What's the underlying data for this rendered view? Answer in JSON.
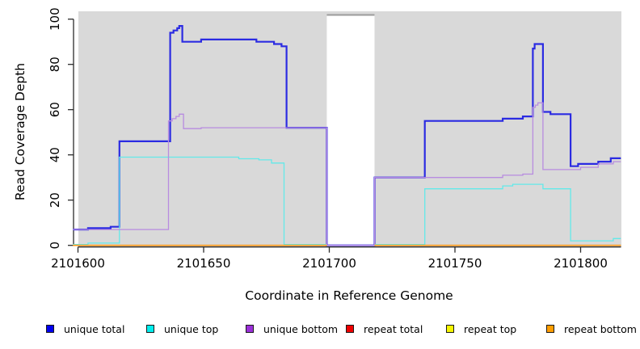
{
  "axes": {
    "ylabel": "Read Coverage Depth",
    "xlabel": "Coordinate in Reference Genome",
    "y_ticks": [
      0,
      20,
      40,
      60,
      80,
      100
    ],
    "x_ticks": [
      2101600,
      2101650,
      2101700,
      2101750,
      2101800
    ],
    "y_range": [
      0,
      100
    ],
    "x_range": [
      2101598,
      2101816
    ]
  },
  "legend": {
    "items": [
      {
        "label": "unique total",
        "color": "#0000ee"
      },
      {
        "label": "unique top",
        "color": "#00eeee"
      },
      {
        "label": "unique bottom",
        "color": "#9b30d9"
      },
      {
        "label": "repeat total",
        "color": "#ee0000"
      },
      {
        "label": "repeat top",
        "color": "#f5f500"
      },
      {
        "label": "repeat bottom",
        "color": "#ff9d00"
      }
    ]
  },
  "chart_data": {
    "type": "line",
    "interpolation": "step",
    "title": "",
    "xlabel": "Coordinate in Reference Genome",
    "ylabel": "Read Coverage Depth",
    "xlim": [
      2101598,
      2101816
    ],
    "ylim": [
      0,
      100
    ],
    "grid": false,
    "legend_position": "bottom",
    "plot_background": "#d9d9d9",
    "masked_region": {
      "from": 2101699,
      "to": 2101718,
      "color": "#ffffff",
      "edge_color": "#9b9b9b"
    },
    "series": [
      {
        "name": "unique total",
        "color": "#2b2be2",
        "width": 2.2,
        "segments": [
          [
            [
              2101598,
              7
            ],
            [
              2101604,
              7
            ],
            [
              2101604,
              7.6
            ],
            [
              2101613,
              7.6
            ],
            [
              2101613,
              8.2
            ],
            [
              2101616.5,
              8.2
            ],
            [
              2101616.5,
              46
            ],
            [
              2101636.7,
              46
            ],
            [
              2101636.7,
              94
            ],
            [
              2101638,
              94
            ],
            [
              2101638,
              95
            ],
            [
              2101639.5,
              95
            ],
            [
              2101639.5,
              96
            ],
            [
              2101640.3,
              96
            ],
            [
              2101640.3,
              97
            ],
            [
              2101641.5,
              97
            ],
            [
              2101641.5,
              90
            ],
            [
              2101649,
              90
            ],
            [
              2101649,
              91
            ],
            [
              2101671,
              91
            ],
            [
              2101671,
              90
            ],
            [
              2101678,
              90
            ],
            [
              2101678,
              89
            ],
            [
              2101681,
              89
            ],
            [
              2101681,
              88
            ],
            [
              2101683,
              88
            ],
            [
              2101683,
              52
            ],
            [
              2101699,
              52
            ],
            [
              2101699,
              0
            ],
            [
              2101718,
              0
            ],
            [
              2101718,
              30
            ],
            [
              2101738,
              30
            ],
            [
              2101738,
              55
            ],
            [
              2101769,
              55
            ],
            [
              2101769,
              56
            ],
            [
              2101777,
              56
            ],
            [
              2101777,
              57
            ],
            [
              2101781,
              57
            ],
            [
              2101781,
              87
            ],
            [
              2101781.7,
              87
            ],
            [
              2101781.7,
              89
            ],
            [
              2101785,
              89
            ],
            [
              2101785,
              59
            ],
            [
              2101788,
              59
            ],
            [
              2101788,
              58
            ],
            [
              2101796,
              58
            ],
            [
              2101796,
              35
            ],
            [
              2101799,
              35
            ],
            [
              2101799,
              36
            ],
            [
              2101807,
              36
            ],
            [
              2101807,
              37
            ],
            [
              2101812,
              37
            ],
            [
              2101812,
              38.5
            ],
            [
              2101816,
              38.5
            ]
          ]
        ]
      },
      {
        "name": "unique top",
        "color": "#63e9e9",
        "width": 1.3,
        "segments": [
          [
            [
              2101598,
              0.4
            ],
            [
              2101604,
              0.4
            ],
            [
              2101604,
              1
            ],
            [
              2101616.5,
              1
            ],
            [
              2101616.5,
              39
            ],
            [
              2101664,
              39
            ],
            [
              2101664,
              38.3
            ],
            [
              2101672,
              38.3
            ],
            [
              2101672,
              37.8
            ],
            [
              2101677,
              37.8
            ],
            [
              2101677,
              36.4
            ],
            [
              2101682,
              36.4
            ],
            [
              2101682,
              0.4
            ],
            [
              2101699,
              0.4
            ]
          ],
          [
            [
              2101718,
              0.4
            ],
            [
              2101738,
              0.4
            ],
            [
              2101738,
              25
            ],
            [
              2101769,
              25
            ],
            [
              2101769,
              26.3
            ],
            [
              2101773,
              26.3
            ],
            [
              2101773,
              27
            ],
            [
              2101785,
              27
            ],
            [
              2101785,
              25
            ],
            [
              2101796,
              25
            ],
            [
              2101796,
              2
            ],
            [
              2101813,
              2
            ],
            [
              2101813,
              3
            ],
            [
              2101816,
              3
            ]
          ]
        ]
      },
      {
        "name": "unique bottom",
        "color": "#b88ce0",
        "width": 1.3,
        "segments": [
          [
            [
              2101598,
              7
            ],
            [
              2101636,
              7
            ],
            [
              2101636,
              55
            ],
            [
              2101637.5,
              55
            ],
            [
              2101637.5,
              56
            ],
            [
              2101639,
              56
            ],
            [
              2101639,
              57
            ],
            [
              2101640.3,
              57
            ],
            [
              2101640.3,
              58
            ],
            [
              2101642,
              58
            ],
            [
              2101642,
              51.6
            ],
            [
              2101649,
              51.6
            ],
            [
              2101649,
              52
            ],
            [
              2101699,
              52
            ],
            [
              2101699,
              0
            ],
            [
              2101718,
              0
            ],
            [
              2101718,
              30
            ],
            [
              2101769,
              30
            ],
            [
              2101769,
              31
            ],
            [
              2101777,
              31
            ],
            [
              2101777,
              31.5
            ],
            [
              2101781,
              31.5
            ],
            [
              2101781,
              61
            ],
            [
              2101782,
              61
            ],
            [
              2101782,
              62
            ],
            [
              2101783,
              62
            ],
            [
              2101783,
              63
            ],
            [
              2101785,
              63
            ],
            [
              2101785,
              33.5
            ],
            [
              2101800,
              33.5
            ],
            [
              2101800,
              34.5
            ],
            [
              2101807,
              34.5
            ],
            [
              2101807,
              36
            ],
            [
              2101813,
              36
            ],
            [
              2101813,
              37
            ],
            [
              2101816,
              37
            ]
          ]
        ]
      },
      {
        "name": "repeat total",
        "color": "#e80000",
        "width": 1.3,
        "segments": [
          [
            [
              2101598,
              0
            ],
            [
              2101699,
              0
            ]
          ],
          [
            [
              2101718,
              0
            ],
            [
              2101816,
              0
            ]
          ]
        ]
      },
      {
        "name": "repeat top",
        "color": "#ffe800",
        "width": 1.3,
        "segments": [
          [
            [
              2101598,
              0
            ],
            [
              2101699,
              0
            ]
          ],
          [
            [
              2101718,
              0
            ],
            [
              2101816,
              0
            ]
          ]
        ]
      },
      {
        "name": "repeat bottom",
        "color": "#ff9816",
        "width": 1.6,
        "segments": [
          [
            [
              2101598,
              0
            ],
            [
              2101699,
              0
            ]
          ],
          [
            [
              2101718,
              0
            ],
            [
              2101816,
              0
            ]
          ]
        ]
      }
    ]
  }
}
